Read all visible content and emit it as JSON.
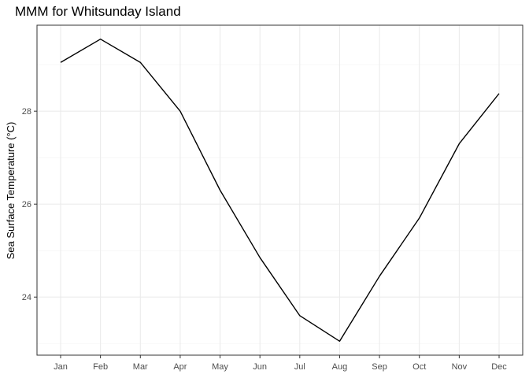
{
  "chart_data": {
    "type": "line",
    "title": "MMM for Whitsunday Island",
    "xlabel": "",
    "ylabel": "Sea Surface Temperature (°C)",
    "categories": [
      "Jan",
      "Feb",
      "Mar",
      "Apr",
      "May",
      "Jun",
      "Jul",
      "Aug",
      "Sep",
      "Oct",
      "Nov",
      "Dec"
    ],
    "series": [
      {
        "values": [
          29.05,
          29.55,
          29.05,
          28.0,
          26.3,
          24.85,
          23.6,
          23.05,
          24.45,
          25.7,
          27.3,
          28.38
        ]
      }
    ],
    "yticks": [
      24,
      26,
      28
    ],
    "ylim": [
      22.75,
      29.85
    ],
    "grid": true,
    "legend": "none",
    "colors": {
      "line": "#000000",
      "panel_border": "#333333",
      "grid_major": "#ebebeb",
      "grid_minor": "#f5f5f5",
      "tick_text": "#4d4d4d"
    }
  }
}
